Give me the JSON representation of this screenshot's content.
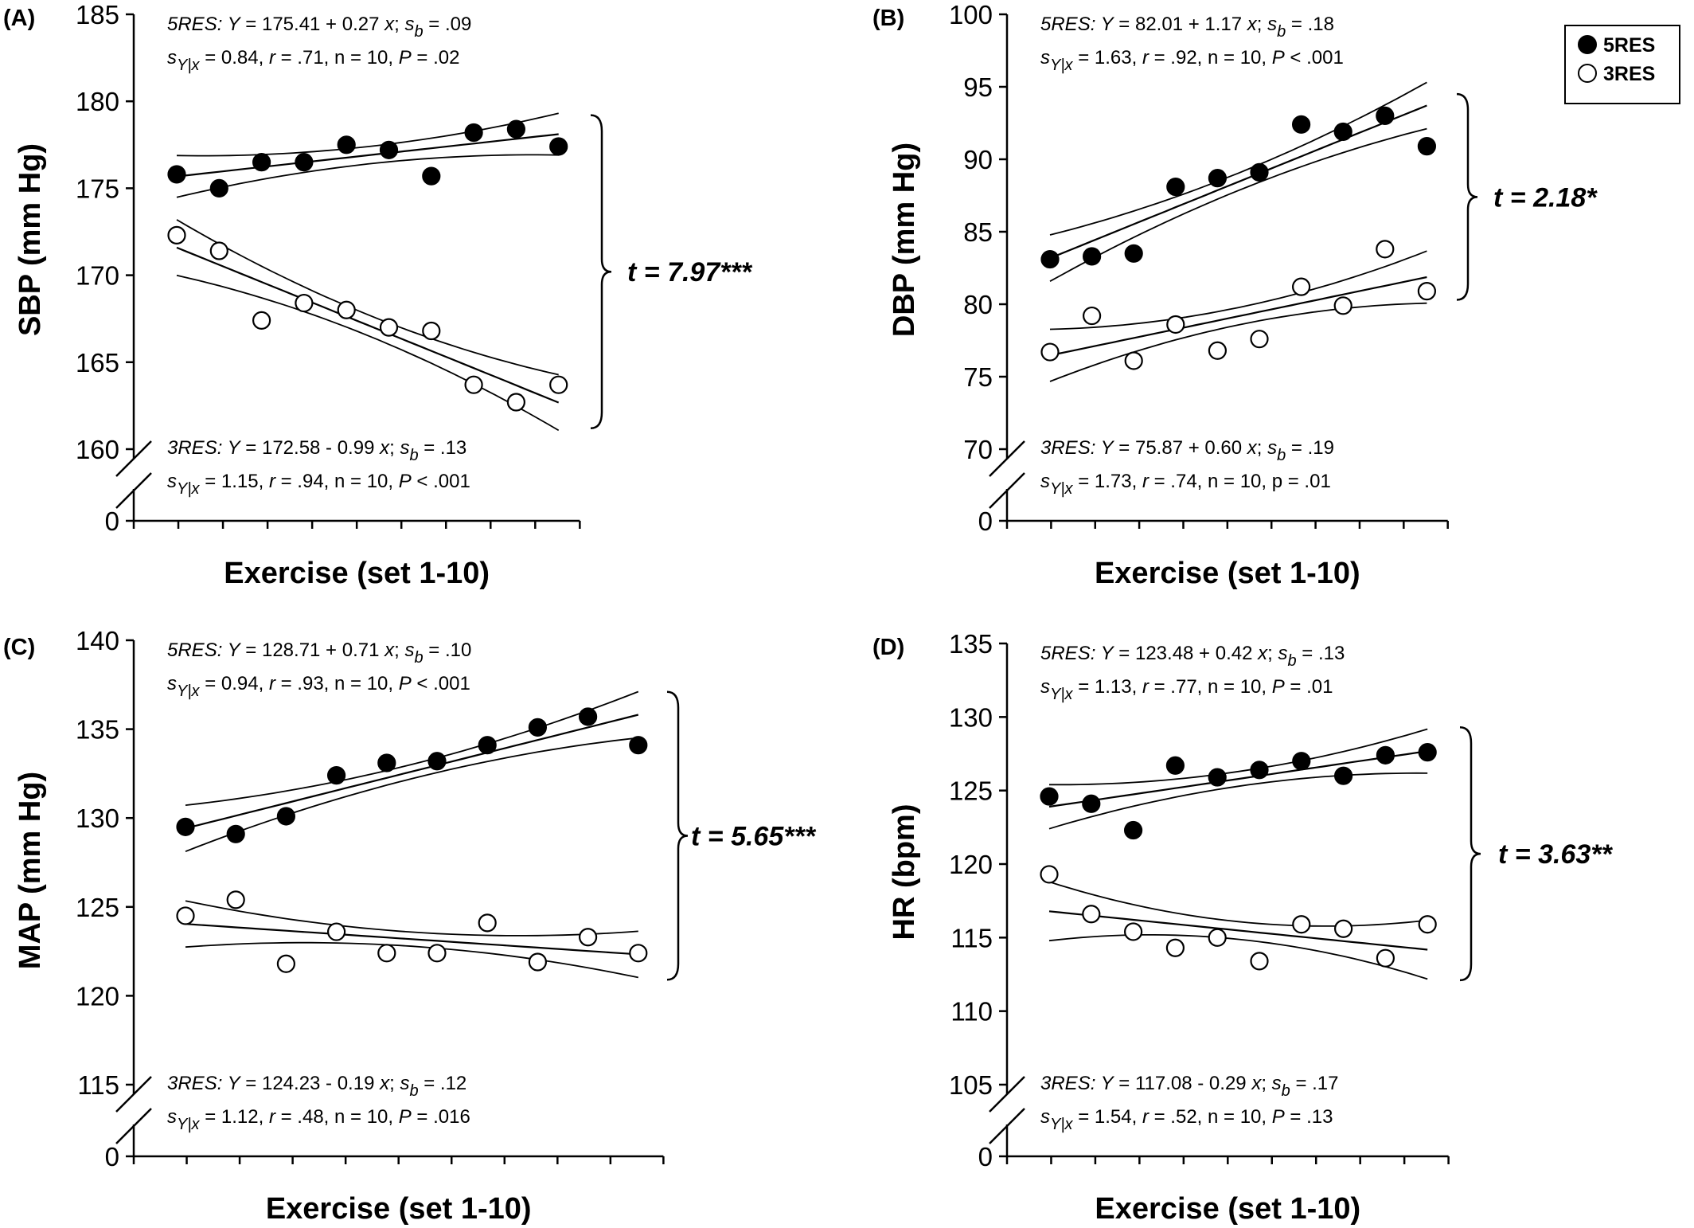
{
  "legend": {
    "items": [
      {
        "label": "5RES",
        "marker": "filled-circle"
      },
      {
        "label": "3RES",
        "marker": "open-circle"
      }
    ]
  },
  "colors": {
    "filled": "#000000",
    "open": "#ffffff",
    "line": "#000000"
  },
  "chart_data": [
    {
      "id": "A",
      "panel_label": "(A)",
      "type": "scatter",
      "ylabel": "SBP (mm Hg)",
      "xlabel": "Exercise (set 1-10)",
      "ylim": [
        160,
        185
      ],
      "yticks": [
        160,
        165,
        170,
        175,
        180,
        185
      ],
      "x": [
        1,
        2,
        3,
        4,
        5,
        6,
        7,
        8,
        9,
        10
      ],
      "series": [
        {
          "name": "5RES",
          "marker": "filled",
          "values": [
            175.8,
            175.0,
            176.5,
            176.5,
            177.5,
            177.2,
            175.7,
            178.2,
            178.4,
            177.4
          ],
          "fit": {
            "intercept": 175.41,
            "slope": 0.27
          },
          "band": [
            1.2,
            0.5
          ]
        },
        {
          "name": "3RES",
          "marker": "open",
          "values": [
            172.3,
            171.4,
            167.4,
            168.4,
            168.0,
            167.0,
            166.8,
            163.7,
            162.7,
            163.7
          ],
          "fit": {
            "intercept": 172.58,
            "slope": -0.99
          },
          "band": [
            1.6,
            0.6
          ]
        }
      ],
      "eq_top": {
        "label": "5RES:",
        "line1": "Y = 175.41 + 0.27 x; s",
        "sub1": "b",
        "tail1": " = .09",
        "sym2": "s",
        "sub2": "Y|x",
        "line2": " = 0.84, r = .71, n = 10, P = .02"
      },
      "eq_bottom": {
        "label": "3RES:",
        "line1": "Y = 172.58 - 0.99 x; s",
        "sub1": "b",
        "tail1": " = .13",
        "sym2": "s",
        "sub2": "Y|x",
        "line2": " = 1.15, r = .94, n = 10, P < .001"
      },
      "t_stat": "t = 7.97***",
      "brace_range": [
        161.2,
        179.2
      ]
    },
    {
      "id": "B",
      "panel_label": "(B)",
      "type": "scatter",
      "ylabel": "DBP (mm Hg)",
      "xlabel": "Exercise (set 1-10)",
      "ylim": [
        70,
        100
      ],
      "yticks": [
        70,
        75,
        80,
        85,
        90,
        95,
        100
      ],
      "x": [
        1,
        2,
        3,
        4,
        5,
        6,
        7,
        8,
        9,
        10
      ],
      "series": [
        {
          "name": "5RES",
          "marker": "filled",
          "values": [
            83.1,
            83.3,
            83.5,
            88.1,
            88.7,
            89.1,
            92.4,
            91.9,
            93.0,
            90.9
          ],
          "fit": {
            "intercept": 82.01,
            "slope": 1.17
          },
          "band": [
            1.6,
            0.6
          ]
        },
        {
          "name": "3RES",
          "marker": "open",
          "values": [
            76.7,
            79.2,
            76.1,
            78.6,
            76.8,
            77.6,
            81.2,
            79.9,
            83.8,
            80.9
          ],
          "fit": {
            "intercept": 75.87,
            "slope": 0.6
          },
          "band": [
            1.8,
            0.6
          ]
        }
      ],
      "eq_top": {
        "label": "5RES:",
        "line1": "Y = 82.01 + 1.17 x; s",
        "sub1": "b",
        "tail1": " = .18",
        "sym2": "s",
        "sub2": "Y|x",
        "line2": " = 1.63, r = .92, n = 10, P < .001"
      },
      "eq_bottom": {
        "label": "3RES:",
        "line1": "Y = 75.87 + 0.60 x; s",
        "sub1": "b",
        "tail1": " = .19",
        "sym2": "s",
        "sub2": "Y|x",
        "line2": " = 1.73, r = .74, n = 10, p = .01"
      },
      "t_stat": "t = 2.18*",
      "brace_range": [
        80.3,
        94.5
      ]
    },
    {
      "id": "C",
      "panel_label": "(C)",
      "type": "scatter",
      "ylabel": "MAP (mm Hg)",
      "xlabel": "Exercise (set 1-10)",
      "ylim": [
        115,
        140
      ],
      "yticks": [
        115,
        120,
        125,
        130,
        135,
        140
      ],
      "x": [
        1,
        2,
        3,
        4,
        5,
        6,
        7,
        8,
        9,
        10
      ],
      "series": [
        {
          "name": "5RES",
          "marker": "filled",
          "values": [
            129.5,
            129.1,
            130.1,
            132.4,
            133.1,
            133.2,
            134.1,
            135.1,
            135.7,
            134.1
          ],
          "fit": {
            "intercept": 128.71,
            "slope": 0.71
          },
          "band": [
            1.3,
            0.4
          ]
        },
        {
          "name": "3RES",
          "marker": "open",
          "values": [
            124.5,
            125.4,
            121.8,
            123.6,
            122.4,
            122.4,
            124.1,
            121.9,
            123.3,
            122.4
          ],
          "fit": {
            "intercept": 124.23,
            "slope": -0.19
          },
          "band": [
            1.3,
            0.4
          ]
        }
      ],
      "eq_top": {
        "label": "5RES:",
        "line1": "Y = 128.71 + 0.71 x; s",
        "sub1": "b",
        "tail1": " = .10",
        "sym2": "s",
        "sub2": "Y|x",
        "line2": " = 0.94, r = .93, n = 10, P < .001"
      },
      "eq_bottom": {
        "label": "3RES:",
        "line1": "Y = 124.23 - 0.19 x; s",
        "sub1": "b",
        "tail1": " = .12",
        "sym2": "s",
        "sub2": "Y|x",
        "line2": " = 1.12, r = .48, n = 10, P = .016"
      },
      "t_stat": "t = 5.65***",
      "brace_range": [
        120.9,
        137.1
      ]
    },
    {
      "id": "D",
      "panel_label": "(D)",
      "type": "scatter",
      "ylabel": "HR (bpm)",
      "xlabel": "Exercise (set 1-10)",
      "ylim": [
        105,
        135
      ],
      "yticks": [
        105,
        110,
        115,
        120,
        125,
        130,
        135
      ],
      "x": [
        1,
        2,
        3,
        4,
        5,
        6,
        7,
        8,
        9,
        10
      ],
      "series": [
        {
          "name": "5RES",
          "marker": "filled",
          "values": [
            124.6,
            124.1,
            122.3,
            126.7,
            125.9,
            126.4,
            127.0,
            126.0,
            127.4,
            127.6
          ],
          "fit": {
            "intercept": 123.48,
            "slope": 0.42
          },
          "band": [
            1.5,
            0.5
          ]
        },
        {
          "name": "3RES",
          "marker": "open",
          "values": [
            119.3,
            116.6,
            115.4,
            114.3,
            115.0,
            113.4,
            115.9,
            115.6,
            113.6,
            115.9
          ],
          "fit": {
            "intercept": 117.08,
            "slope": -0.29
          },
          "band": [
            2.0,
            0.6
          ]
        }
      ],
      "eq_top": {
        "label": "5RES:",
        "line1": "Y = 123.48 + 0.42 x; s",
        "sub1": "b",
        "tail1": " = .13",
        "sym2": "s",
        "sub2": "Y|x",
        "line2": " = 1.13, r = .77, n = 10, P = .01"
      },
      "eq_bottom": {
        "label": "3RES:",
        "line1": "Y = 117.08 - 0.29 x; s",
        "sub1": "b",
        "tail1": " = .17",
        "sym2": "s",
        "sub2": "Y|x",
        "line2": " = 1.54, r = .52, n = 10, P = .13"
      },
      "t_stat": "t = 3.63**",
      "brace_range": [
        112.1,
        129.3
      ]
    }
  ]
}
